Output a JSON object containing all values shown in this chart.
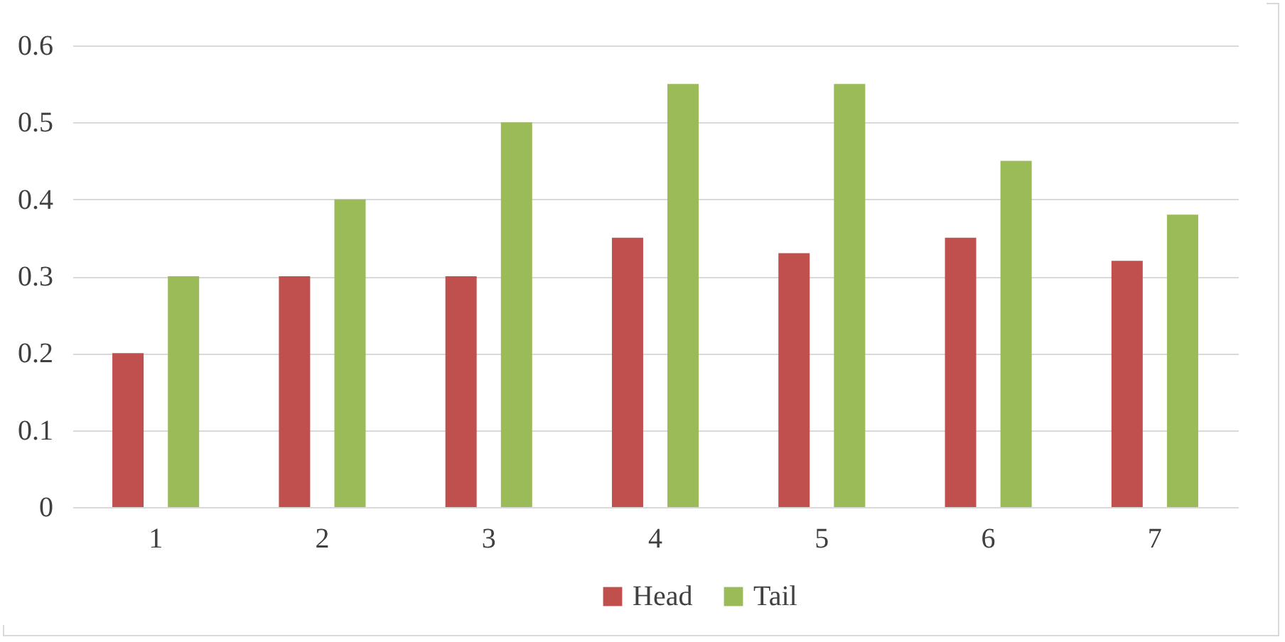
{
  "chart_data": {
    "type": "bar",
    "categories": [
      "1",
      "2",
      "3",
      "4",
      "5",
      "6",
      "7"
    ],
    "series": [
      {
        "name": "Head",
        "color": "#c0504d",
        "values": [
          0.2,
          0.3,
          0.3,
          0.35,
          0.33,
          0.35,
          0.32
        ]
      },
      {
        "name": "Tail",
        "color": "#9bbb59",
        "values": [
          0.3,
          0.4,
          0.5,
          0.55,
          0.55,
          0.45,
          0.38
        ]
      }
    ],
    "ylim": [
      0,
      0.6
    ],
    "yticks": [
      0,
      0.1,
      0.2,
      0.3,
      0.4,
      0.5,
      0.6
    ],
    "grid": "y",
    "legend": "bottom"
  }
}
